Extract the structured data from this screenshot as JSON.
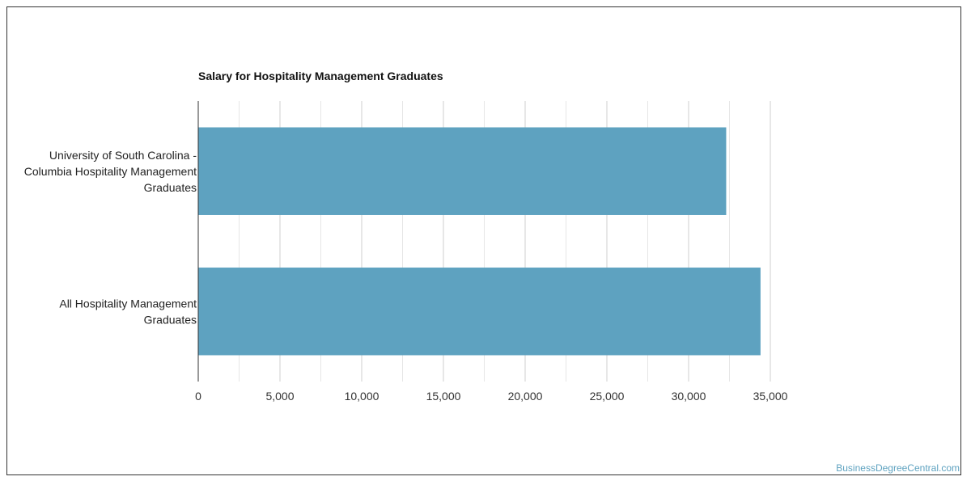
{
  "chart_data": {
    "type": "bar",
    "orientation": "horizontal",
    "title": "Salary for Hospitality Management Graduates",
    "categories": [
      [
        "University of South Carolina -",
        "Columbia Hospitality Management",
        "Graduates"
      ],
      [
        "All Hospitality Management",
        "Graduates"
      ]
    ],
    "values": [
      32300,
      34400
    ],
    "xlim": [
      0,
      35000
    ],
    "xticks": [
      0,
      5000,
      10000,
      15000,
      20000,
      25000,
      30000,
      35000
    ],
    "xtick_labels": [
      "0",
      "5,000",
      "10,000",
      "15,000",
      "20,000",
      "25,000",
      "30,000",
      "35,000"
    ],
    "grid": true,
    "bar_color": "#5ea2c0"
  },
  "watermark": "BusinessDegreeCentral.com"
}
